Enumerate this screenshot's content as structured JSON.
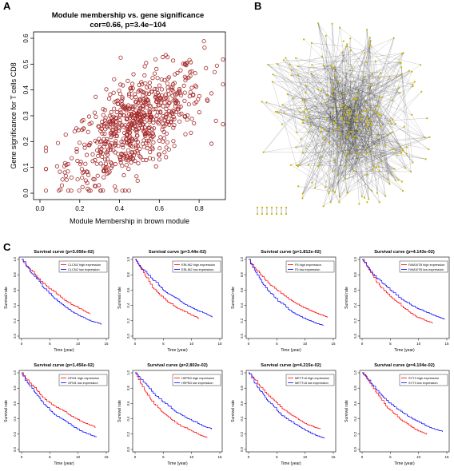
{
  "panel_labels": {
    "a": "A",
    "b": "B",
    "c": "C"
  },
  "scatter": {
    "title": "Module membership vs. gene significance",
    "subtitle": "cor=0.66, p=3.4e−104",
    "xlabel": "Module Membership in brown module",
    "ylabel": "Gene significance for  T cells CD8",
    "x_ticks": [
      "0.0",
      "0.2",
      "0.4",
      "0.6",
      "0.8"
    ],
    "y_ticks": [
      "0.0",
      "0.1",
      "0.2",
      "0.3",
      "0.4",
      "0.5",
      "0.6"
    ],
    "point_color": "#a52a2a"
  },
  "network": {
    "node_color": "#c8b400",
    "edge_color": "#333333"
  },
  "survival": {
    "ylabel": "Survival rate",
    "xlabel": "Time (year)",
    "x_ticks": [
      "0",
      "5",
      "10",
      "15"
    ],
    "y_ticks": [
      "0.0",
      "0.2",
      "0.4",
      "0.6",
      "0.8",
      "1.0"
    ],
    "high_color": "#ff0000",
    "low_color": "#0000ff",
    "panels": [
      {
        "title": "Survival curve (p=3.056e-02)",
        "high": "CLCN2 high expression",
        "low": "CLCN2 low expression"
      },
      {
        "title": "Survival curve (p=3.44e-02)",
        "high": "ERLIN2 high expression",
        "low": "ERLIN2 low expression"
      },
      {
        "title": "Survival curve (p=1.812e-02)",
        "high": "F5 high expression",
        "low": "F5 low expression"
      },
      {
        "title": "Survival curve (p=4.143e-02)",
        "high": "FAM107B high expression",
        "low": "FAM107B low expression"
      },
      {
        "title": "Survival curve (p=1.456e-02)",
        "high": "GFM1 high expression",
        "low": "GFM1 low expression"
      },
      {
        "title": "Survival curve (p=2.802e-02)",
        "high": "HSPB3 high expression",
        "low": "HSPB3 low expression"
      },
      {
        "title": "Survival curve (p=4.215e-02)",
        "high": "METTL8 high expression",
        "low": "METTL8 low expression"
      },
      {
        "title": "Survival curve (p=4.104e-02)",
        "high": "SYT3 high expression",
        "low": "SYT3 low expression"
      }
    ]
  },
  "chart_data": [
    {
      "type": "scatter",
      "title": "Module membership vs. gene significance",
      "subtitle": "cor=0.66, p=3.4e−104",
      "xlabel": "Module Membership in brown module",
      "ylabel": "Gene significance for  T cells CD8",
      "xlim": [
        0.0,
        0.95
      ],
      "ylim": [
        0.0,
        0.65
      ],
      "correlation": 0.66,
      "n_points": 700,
      "x_mean": 0.48,
      "y_mean": 0.27
    },
    {
      "type": "line",
      "chart": "Kaplan-Meier survival curves (8 panels)",
      "xlabel": "Time (year)",
      "ylabel": "Survival rate",
      "xlim": [
        0,
        15
      ],
      "ylim": [
        0,
        1
      ],
      "p_values": [
        "3.056e-02",
        "3.44e-02",
        "1.812e-02",
        "4.143e-02",
        "1.456e-02",
        "2.802e-02",
        "4.215e-02",
        "4.104e-02"
      ]
    }
  ]
}
